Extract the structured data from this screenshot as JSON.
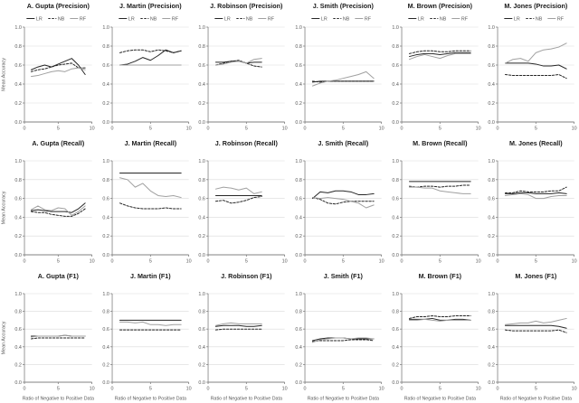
{
  "figure": {
    "description_labels": {
      "ylabel": "Mean Accuracy",
      "xlabel": "Ratio of Negative to Positive Data"
    }
  },
  "chart_data": {
    "type": "line",
    "grid": {
      "rows": 3,
      "cols": 6
    },
    "row_metrics": [
      "Precision",
      "Recall",
      "F1"
    ],
    "col_people": [
      "A. Gupta",
      "J. Martin",
      "J. Robinson",
      "J. Smith",
      "M. Brown",
      "M. Jones"
    ],
    "ylabel": "Mean Accuracy",
    "xlabel": "Ratio of Negative to Positive Data",
    "ylim": [
      0.0,
      1.0
    ],
    "xlim": [
      0,
      10
    ],
    "y_ticks": [
      "1.0",
      "0.8",
      "0.6",
      "0.4",
      "0.2",
      "0.0"
    ],
    "y_tick_values": [
      1.0,
      0.8,
      0.6,
      0.4,
      0.2,
      0.0
    ],
    "x_ticks": [
      "0",
      "5",
      "10"
    ],
    "x_tick_values": [
      0,
      5,
      10
    ],
    "grid_on": true,
    "legend": [
      "LR",
      "NB",
      "RF"
    ],
    "legend_position": "top (Precision row only)",
    "colors": {
      "line_dark": "#262626",
      "line_gray": "#a0a0a0",
      "gridline": "#d9d9d9",
      "axis": "#808080",
      "tick_text": "#595959",
      "title_text": "#1a1a1a"
    },
    "series_styles": [
      {
        "name": "LR",
        "color": "#262626",
        "dash": ""
      },
      {
        "name": "NB",
        "color": "#262626",
        "dash": "2.4,1.6"
      },
      {
        "name": "RF",
        "color": "#a0a0a0",
        "dash": ""
      }
    ],
    "charts": [
      {
        "title": "A. Gupta (Precision)",
        "x": [
          1,
          2,
          3,
          4,
          5,
          6,
          7,
          8,
          9
        ],
        "series": [
          {
            "name": "LR",
            "values": [
              0.55,
              0.58,
              0.6,
              0.58,
              0.61,
              0.64,
              0.67,
              0.6,
              0.5
            ]
          },
          {
            "name": "NB",
            "values": [
              0.53,
              0.55,
              0.56,
              0.58,
              0.6,
              0.61,
              0.62,
              0.57,
              0.57
            ]
          },
          {
            "name": "RF",
            "values": [
              0.48,
              0.49,
              0.51,
              0.53,
              0.54,
              0.53,
              0.56,
              0.57,
              0.55
            ]
          }
        ]
      },
      {
        "title": "J. Martin (Precision)",
        "x": [
          1,
          2,
          3,
          4,
          5,
          6,
          7,
          8,
          9
        ],
        "series": [
          {
            "name": "LR",
            "values": [
              0.6,
              0.61,
              0.64,
              0.68,
              0.65,
              0.7,
              0.76,
              0.73,
              0.75
            ]
          },
          {
            "name": "NB",
            "values": [
              0.73,
              0.75,
              0.76,
              0.76,
              0.74,
              0.76,
              0.75,
              0.73,
              0.75
            ]
          },
          {
            "name": "RF",
            "values": [
              0.6,
              0.6,
              0.6,
              0.6,
              0.6,
              0.6,
              0.6,
              0.6,
              0.6
            ]
          }
        ]
      },
      {
        "title": "J. Robinson (Precision)",
        "x": [
          1,
          2,
          3,
          4,
          5,
          6,
          7
        ],
        "series": [
          {
            "name": "LR",
            "values": [
              0.63,
              0.63,
              0.64,
              0.64,
              0.62,
              0.63,
              0.63
            ]
          },
          {
            "name": "NB",
            "values": [
              0.6,
              0.62,
              0.64,
              0.65,
              0.62,
              0.59,
              0.58
            ]
          },
          {
            "name": "RF",
            "values": [
              0.6,
              0.61,
              0.63,
              0.64,
              0.62,
              0.66,
              0.67
            ]
          }
        ]
      },
      {
        "title": "J. Smith (Precision)",
        "x": [
          1,
          2,
          3,
          4,
          5,
          6,
          7,
          8,
          9
        ],
        "series": [
          {
            "name": "LR",
            "values": [
              0.42,
              0.43,
              0.43,
              0.43,
              0.43,
              0.43,
              0.43,
              0.43,
              0.43
            ]
          },
          {
            "name": "NB",
            "values": [
              0.43,
              0.42,
              0.43,
              0.43,
              0.43,
              0.43,
              0.43,
              0.43,
              0.43
            ]
          },
          {
            "name": "RF",
            "values": [
              0.38,
              0.41,
              0.43,
              0.44,
              0.46,
              0.48,
              0.5,
              0.53,
              0.46
            ]
          }
        ]
      },
      {
        "title": "M. Brown (Precision)",
        "x": [
          1,
          2,
          3,
          4,
          5,
          6,
          7,
          8,
          9
        ],
        "series": [
          {
            "name": "LR",
            "values": [
              0.69,
              0.71,
              0.72,
              0.72,
              0.71,
              0.72,
              0.73,
              0.73,
              0.73
            ]
          },
          {
            "name": "NB",
            "values": [
              0.72,
              0.74,
              0.75,
              0.75,
              0.74,
              0.74,
              0.75,
              0.75,
              0.75
            ]
          },
          {
            "name": "RF",
            "values": [
              0.66,
              0.69,
              0.71,
              0.69,
              0.67,
              0.7,
              0.72,
              0.72,
              0.72
            ]
          }
        ]
      },
      {
        "title": "M. Jones (Precision)",
        "x": [
          1,
          2,
          3,
          4,
          5,
          6,
          7,
          8,
          9
        ],
        "series": [
          {
            "name": "LR",
            "values": [
              0.62,
              0.62,
              0.62,
              0.62,
              0.61,
              0.59,
              0.59,
              0.6,
              0.56
            ]
          },
          {
            "name": "NB",
            "values": [
              0.5,
              0.49,
              0.49,
              0.49,
              0.49,
              0.49,
              0.49,
              0.5,
              0.46
            ]
          },
          {
            "name": "RF",
            "values": [
              0.62,
              0.66,
              0.67,
              0.64,
              0.73,
              0.76,
              0.77,
              0.79,
              0.83
            ]
          }
        ]
      },
      {
        "title": "A. Gupta (Recall)",
        "x": [
          1,
          2,
          3,
          4,
          5,
          6,
          7,
          8,
          9
        ],
        "series": [
          {
            "name": "LR",
            "values": [
              0.47,
              0.48,
              0.47,
              0.46,
              0.46,
              0.46,
              0.45,
              0.49,
              0.55
            ]
          },
          {
            "name": "NB",
            "values": [
              0.46,
              0.45,
              0.45,
              0.43,
              0.42,
              0.41,
              0.41,
              0.44,
              0.49
            ]
          },
          {
            "name": "RF",
            "values": [
              0.48,
              0.52,
              0.48,
              0.47,
              0.5,
              0.49,
              0.42,
              0.46,
              0.52
            ]
          }
        ]
      },
      {
        "title": "J. Martin (Recall)",
        "x": [
          1,
          2,
          3,
          4,
          5,
          6,
          7,
          8,
          9
        ],
        "series": [
          {
            "name": "LR",
            "values": [
              0.87,
              0.87,
              0.87,
              0.87,
              0.87,
              0.87,
              0.87,
              0.87,
              0.87
            ]
          },
          {
            "name": "NB",
            "values": [
              0.55,
              0.52,
              0.5,
              0.49,
              0.49,
              0.49,
              0.5,
              0.49,
              0.49
            ]
          },
          {
            "name": "RF",
            "values": [
              0.82,
              0.8,
              0.72,
              0.76,
              0.68,
              0.63,
              0.62,
              0.63,
              0.61
            ]
          }
        ]
      },
      {
        "title": "J. Robinson (Recall)",
        "x": [
          1,
          2,
          3,
          4,
          5,
          6,
          7
        ],
        "series": [
          {
            "name": "LR",
            "values": [
              0.63,
              0.63,
              0.63,
              0.63,
              0.63,
              0.63,
              0.63
            ]
          },
          {
            "name": "NB",
            "values": [
              0.57,
              0.58,
              0.55,
              0.56,
              0.58,
              0.61,
              0.62
            ]
          },
          {
            "name": "RF",
            "values": [
              0.7,
              0.72,
              0.71,
              0.69,
              0.71,
              0.65,
              0.67
            ]
          }
        ]
      },
      {
        "title": "J. Smith (Recall)",
        "x": [
          1,
          2,
          3,
          4,
          5,
          6,
          7,
          8,
          9
        ],
        "series": [
          {
            "name": "LR",
            "values": [
              0.6,
              0.67,
              0.66,
              0.68,
              0.68,
              0.67,
              0.64,
              0.64,
              0.65
            ]
          },
          {
            "name": "NB",
            "values": [
              0.61,
              0.59,
              0.55,
              0.54,
              0.56,
              0.57,
              0.57,
              0.57,
              0.57
            ]
          },
          {
            "name": "RF",
            "values": [
              0.61,
              0.6,
              0.61,
              0.6,
              0.59,
              0.57,
              0.55,
              0.5,
              0.53
            ]
          }
        ]
      },
      {
        "title": "M. Brown (Recall)",
        "x": [
          1,
          2,
          3,
          4,
          5,
          6,
          7,
          8,
          9
        ],
        "series": [
          {
            "name": "LR",
            "values": [
              0.78,
              0.78,
              0.78,
              0.78,
              0.78,
              0.78,
              0.78,
              0.78,
              0.78
            ]
          },
          {
            "name": "NB",
            "values": [
              0.73,
              0.72,
              0.73,
              0.73,
              0.72,
              0.73,
              0.73,
              0.74,
              0.74
            ]
          },
          {
            "name": "RF",
            "values": [
              0.72,
              0.72,
              0.71,
              0.71,
              0.68,
              0.67,
              0.66,
              0.65,
              0.65
            ]
          }
        ]
      },
      {
        "title": "M. Jones (Recall)",
        "x": [
          1,
          2,
          3,
          4,
          5,
          6,
          7,
          8,
          9
        ],
        "series": [
          {
            "name": "LR",
            "values": [
              0.65,
              0.65,
              0.66,
              0.66,
              0.65,
              0.65,
              0.65,
              0.66,
              0.65
            ]
          },
          {
            "name": "NB",
            "values": [
              0.66,
              0.66,
              0.68,
              0.67,
              0.67,
              0.67,
              0.68,
              0.68,
              0.72
            ]
          },
          {
            "name": "RF",
            "values": [
              0.63,
              0.64,
              0.65,
              0.64,
              0.6,
              0.6,
              0.62,
              0.63,
              0.63
            ]
          }
        ]
      },
      {
        "title": "A. Gupta (F1)",
        "x": [
          1,
          2,
          3,
          4,
          5,
          6,
          7,
          8,
          9
        ],
        "series": [
          {
            "name": "LR",
            "values": [
              0.52,
              0.52,
              0.52,
              0.52,
              0.52,
              0.53,
              0.52,
              0.52,
              0.52
            ]
          },
          {
            "name": "NB",
            "values": [
              0.49,
              0.5,
              0.5,
              0.5,
              0.5,
              0.5,
              0.5,
              0.5,
              0.5
            ]
          },
          {
            "name": "RF",
            "values": [
              0.51,
              0.52,
              0.52,
              0.52,
              0.52,
              0.53,
              0.52,
              0.52,
              0.52
            ]
          }
        ]
      },
      {
        "title": "J. Martin (F1)",
        "x": [
          1,
          2,
          3,
          4,
          5,
          6,
          7,
          8,
          9
        ],
        "series": [
          {
            "name": "LR",
            "values": [
              0.7,
              0.7,
              0.7,
              0.7,
              0.7,
              0.7,
              0.7,
              0.7,
              0.7
            ]
          },
          {
            "name": "NB",
            "values": [
              0.59,
              0.59,
              0.59,
              0.59,
              0.59,
              0.59,
              0.59,
              0.59,
              0.59
            ]
          },
          {
            "name": "RF",
            "values": [
              0.68,
              0.68,
              0.67,
              0.68,
              0.65,
              0.65,
              0.64,
              0.65,
              0.65
            ]
          }
        ]
      },
      {
        "title": "J. Robinson (F1)",
        "x": [
          1,
          2,
          3,
          4,
          5,
          6,
          7
        ],
        "series": [
          {
            "name": "LR",
            "values": [
              0.63,
              0.64,
              0.64,
              0.64,
              0.63,
              0.63,
              0.64
            ]
          },
          {
            "name": "NB",
            "values": [
              0.59,
              0.6,
              0.6,
              0.6,
              0.6,
              0.6,
              0.6
            ]
          },
          {
            "name": "RF",
            "values": [
              0.64,
              0.66,
              0.67,
              0.66,
              0.66,
              0.66,
              0.66
            ]
          }
        ]
      },
      {
        "title": "J. Smith (F1)",
        "x": [
          1,
          2,
          3,
          4,
          5,
          6,
          7,
          8,
          9
        ],
        "series": [
          {
            "name": "LR",
            "values": [
              0.47,
              0.49,
              0.5,
              0.5,
              0.5,
              0.49,
              0.49,
              0.49,
              0.49
            ]
          },
          {
            "name": "NB",
            "values": [
              0.46,
              0.47,
              0.47,
              0.47,
              0.47,
              0.48,
              0.48,
              0.48,
              0.47
            ]
          },
          {
            "name": "RF",
            "values": [
              0.45,
              0.48,
              0.49,
              0.5,
              0.5,
              0.49,
              0.5,
              0.5,
              0.49
            ]
          }
        ]
      },
      {
        "title": "M. Brown (F1)",
        "x": [
          1,
          2,
          3,
          4,
          5,
          6,
          7,
          8,
          9
        ],
        "series": [
          {
            "name": "LR",
            "values": [
              0.71,
              0.71,
              0.71,
              0.72,
              0.7,
              0.7,
              0.71,
              0.71,
              0.7
            ]
          },
          {
            "name": "NB",
            "values": [
              0.72,
              0.74,
              0.74,
              0.75,
              0.74,
              0.74,
              0.75,
              0.75,
              0.75
            ]
          },
          {
            "name": "RF",
            "values": [
              0.7,
              0.7,
              0.71,
              0.7,
              0.69,
              0.7,
              0.7,
              0.7,
              0.7
            ]
          }
        ]
      },
      {
        "title": "M. Jones (F1)",
        "x": [
          1,
          2,
          3,
          4,
          5,
          6,
          7,
          8,
          9
        ],
        "series": [
          {
            "name": "LR",
            "values": [
              0.64,
              0.64,
              0.64,
              0.64,
              0.64,
              0.64,
              0.64,
              0.63,
              0.61
            ]
          },
          {
            "name": "NB",
            "values": [
              0.59,
              0.58,
              0.58,
              0.58,
              0.58,
              0.58,
              0.58,
              0.59,
              0.56
            ]
          },
          {
            "name": "RF",
            "values": [
              0.65,
              0.66,
              0.67,
              0.67,
              0.69,
              0.67,
              0.68,
              0.7,
              0.72
            ]
          }
        ]
      }
    ]
  }
}
